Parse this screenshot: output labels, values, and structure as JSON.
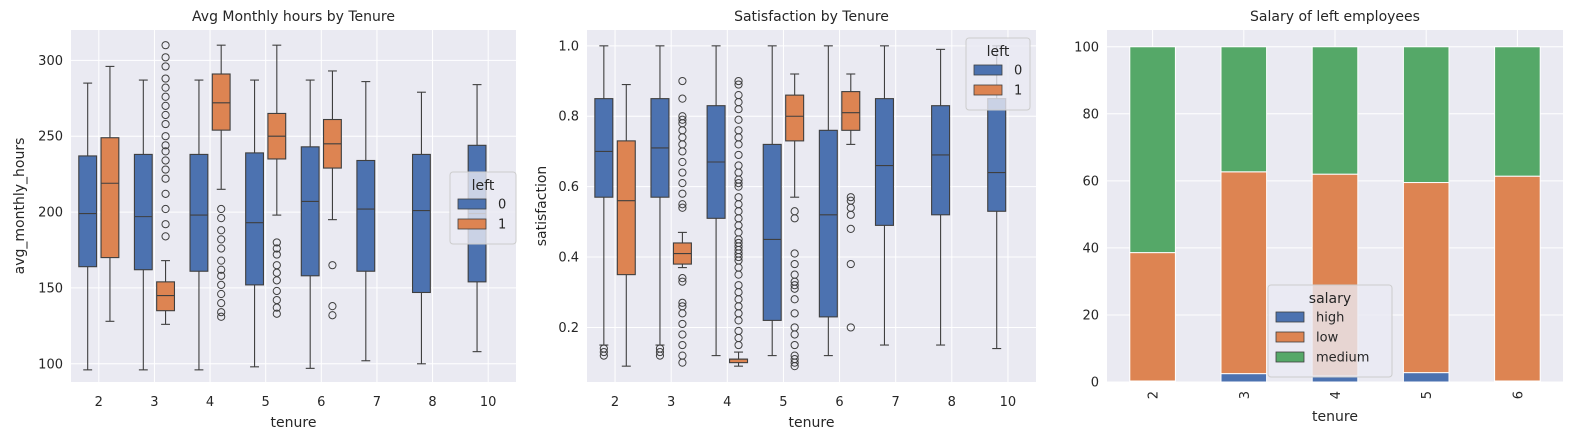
{
  "colors": {
    "blue": "#4c72b0",
    "orange": "#dd8452",
    "green": "#55a868",
    "panel": "#eaeaf2",
    "grid": "#ffffff",
    "line": "#3f3f3f"
  },
  "chart_data": [
    {
      "type": "box",
      "title": "Avg Monthly hours by Tenure",
      "xlabel": "tenure",
      "ylabel": "avg_monthly_hours",
      "categories": [
        "2",
        "3",
        "4",
        "5",
        "6",
        "7",
        "8",
        "10"
      ],
      "ylim": [
        88,
        320
      ],
      "yticks": [
        100,
        150,
        200,
        250,
        300
      ],
      "legend": {
        "title": "left",
        "entries": [
          "0",
          "1"
        ],
        "position": "center-right"
      },
      "series": [
        {
          "name": "0",
          "color": "blue",
          "boxes": [
            {
              "cat": "2",
              "whislo": 96,
              "q1": 164,
              "med": 199,
              "q3": 237,
              "whishi": 285,
              "fliers": []
            },
            {
              "cat": "3",
              "whislo": 96,
              "q1": 162,
              "med": 197,
              "q3": 238,
              "whishi": 287,
              "fliers": []
            },
            {
              "cat": "4",
              "whislo": 96,
              "q1": 161,
              "med": 198,
              "q3": 238,
              "whishi": 287,
              "fliers": []
            },
            {
              "cat": "5",
              "whislo": 98,
              "q1": 152,
              "med": 193,
              "q3": 239,
              "whishi": 287,
              "fliers": []
            },
            {
              "cat": "6",
              "whislo": 97,
              "q1": 158,
              "med": 207,
              "q3": 243,
              "whishi": 287,
              "fliers": []
            },
            {
              "cat": "7",
              "whislo": 102,
              "q1": 161,
              "med": 202,
              "q3": 234,
              "whishi": 286,
              "fliers": []
            },
            {
              "cat": "8",
              "whislo": 100,
              "q1": 147,
              "med": 201,
              "q3": 238,
              "whishi": 279,
              "fliers": []
            },
            {
              "cat": "10",
              "whislo": 108,
              "q1": 154,
              "med": 199,
              "q3": 244,
              "whishi": 284,
              "fliers": []
            }
          ]
        },
        {
          "name": "1",
          "color": "orange",
          "boxes": [
            {
              "cat": "2",
              "whislo": 128,
              "q1": 170,
              "med": 219,
              "q3": 249,
              "whishi": 296,
              "fliers": []
            },
            {
              "cat": "3",
              "whislo": 126,
              "q1": 135,
              "med": 145,
              "q3": 154,
              "whishi": 168,
              "fliers": [
                184,
                192,
                202,
                212,
                222,
                228,
                234,
                240,
                244,
                250,
                258,
                264,
                270,
                276,
                282,
                288,
                296,
                302,
                310
              ]
            },
            {
              "cat": "4",
              "whislo": 215,
              "q1": 254,
              "med": 272,
              "q3": 291,
              "whishi": 310,
              "fliers": [
                131,
                134,
                140,
                146,
                152,
                158,
                162,
                168,
                176,
                182,
                188,
                196,
                202
              ]
            },
            {
              "cat": "5",
              "whislo": 198,
              "q1": 235,
              "med": 250,
              "q3": 265,
              "whishi": 310,
              "fliers": [
                133,
                137,
                142,
                148,
                155,
                160,
                165,
                172,
                176,
                180
              ]
            },
            {
              "cat": "6",
              "whislo": 195,
              "q1": 229,
              "med": 245,
              "q3": 261,
              "whishi": 293,
              "fliers": [
                132,
                138,
                165
              ]
            }
          ]
        }
      ]
    },
    {
      "type": "box",
      "title": "Satisfaction by Tenure",
      "xlabel": "tenure",
      "ylabel": "satisfaction",
      "categories": [
        "2",
        "3",
        "4",
        "5",
        "6",
        "7",
        "8",
        "10"
      ],
      "ylim": [
        0.045,
        1.045
      ],
      "yticks": [
        0.2,
        0.4,
        0.6,
        0.8,
        1.0
      ],
      "yticklabels": [
        "0.2",
        "0.4",
        "0.6",
        "0.8",
        "1.0"
      ],
      "legend": {
        "title": "left",
        "entries": [
          "0",
          "1"
        ],
        "position": "top-right"
      },
      "series": [
        {
          "name": "0",
          "color": "blue",
          "boxes": [
            {
              "cat": "2",
              "whislo": 0.15,
              "q1": 0.57,
              "med": 0.7,
              "q3": 0.85,
              "whishi": 1.0,
              "fliers": [
                0.12,
                0.13,
                0.14
              ]
            },
            {
              "cat": "3",
              "whislo": 0.15,
              "q1": 0.57,
              "med": 0.71,
              "q3": 0.85,
              "whishi": 1.0,
              "fliers": [
                0.12,
                0.13,
                0.14
              ]
            },
            {
              "cat": "4",
              "whislo": 0.12,
              "q1": 0.51,
              "med": 0.67,
              "q3": 0.83,
              "whishi": 1.0,
              "fliers": []
            },
            {
              "cat": "5",
              "whislo": 0.12,
              "q1": 0.22,
              "med": 0.45,
              "q3": 0.72,
              "whishi": 1.0,
              "fliers": []
            },
            {
              "cat": "6",
              "whislo": 0.12,
              "q1": 0.23,
              "med": 0.52,
              "q3": 0.76,
              "whishi": 1.0,
              "fliers": []
            },
            {
              "cat": "7",
              "whislo": 0.15,
              "q1": 0.49,
              "med": 0.66,
              "q3": 0.85,
              "whishi": 1.0,
              "fliers": []
            },
            {
              "cat": "8",
              "whislo": 0.15,
              "q1": 0.52,
              "med": 0.69,
              "q3": 0.83,
              "whishi": 0.99,
              "fliers": []
            },
            {
              "cat": "10",
              "whislo": 0.14,
              "q1": 0.53,
              "med": 0.64,
              "q3": 0.85,
              "whishi": 1.0,
              "fliers": []
            }
          ]
        },
        {
          "name": "1",
          "color": "orange",
          "boxes": [
            {
              "cat": "2",
              "whislo": 0.09,
              "q1": 0.35,
              "med": 0.56,
              "q3": 0.73,
              "whishi": 0.89,
              "fliers": []
            },
            {
              "cat": "3",
              "whislo": 0.37,
              "q1": 0.38,
              "med": 0.41,
              "q3": 0.44,
              "whishi": 0.47,
              "fliers": [
                0.1,
                0.12,
                0.15,
                0.18,
                0.21,
                0.24,
                0.26,
                0.27,
                0.33,
                0.34,
                0.54,
                0.55,
                0.58,
                0.61,
                0.64,
                0.67,
                0.7,
                0.72,
                0.74,
                0.76,
                0.78,
                0.79,
                0.8,
                0.85,
                0.9
              ]
            },
            {
              "cat": "4",
              "whislo": 0.09,
              "q1": 0.1,
              "med": 0.11,
              "q3": 0.11,
              "whishi": 0.13,
              "fliers": [
                0.15,
                0.17,
                0.19,
                0.22,
                0.24,
                0.26,
                0.28,
                0.3,
                0.32,
                0.35,
                0.37,
                0.39,
                0.4,
                0.41,
                0.42,
                0.43,
                0.44,
                0.45,
                0.47,
                0.49,
                0.51,
                0.53,
                0.55,
                0.57,
                0.6,
                0.61,
                0.62,
                0.64,
                0.66,
                0.69,
                0.72,
                0.74,
                0.76,
                0.79,
                0.82,
                0.84,
                0.86,
                0.89,
                0.9
              ]
            },
            {
              "cat": "5",
              "whislo": 0.57,
              "q1": 0.73,
              "med": 0.8,
              "q3": 0.86,
              "whishi": 0.92,
              "fliers": [
                0.09,
                0.1,
                0.11,
                0.12,
                0.15,
                0.18,
                0.2,
                0.24,
                0.28,
                0.31,
                0.32,
                0.33,
                0.35,
                0.38,
                0.41,
                0.51,
                0.53
              ]
            },
            {
              "cat": "6",
              "whislo": 0.72,
              "q1": 0.76,
              "med": 0.81,
              "q3": 0.87,
              "whishi": 0.92,
              "fliers": [
                0.2,
                0.38,
                0.48,
                0.52,
                0.54,
                0.56,
                0.57
              ]
            }
          ]
        }
      ]
    },
    {
      "type": "bar",
      "stacked": true,
      "title": "Salary of left employees",
      "xlabel": "tenure",
      "ylabel": "",
      "categories": [
        "2",
        "3",
        "4",
        "5",
        "6"
      ],
      "ylim": [
        0,
        105
      ],
      "yticks": [
        0,
        20,
        40,
        60,
        80,
        100
      ],
      "legend": {
        "title": "salary",
        "entries": [
          "high",
          "low",
          "medium"
        ],
        "position": "lower-center"
      },
      "series": [
        {
          "name": "high",
          "color": "blue",
          "values": [
            0.3,
            2.5,
            1.8,
            2.8,
            0.3
          ]
        },
        {
          "name": "low",
          "color": "orange",
          "values": [
            38.3,
            60.2,
            60.2,
            56.7,
            61.1
          ]
        },
        {
          "name": "medium",
          "color": "green",
          "values": [
            61.4,
            37.3,
            38.0,
            40.5,
            38.6
          ]
        }
      ]
    }
  ]
}
